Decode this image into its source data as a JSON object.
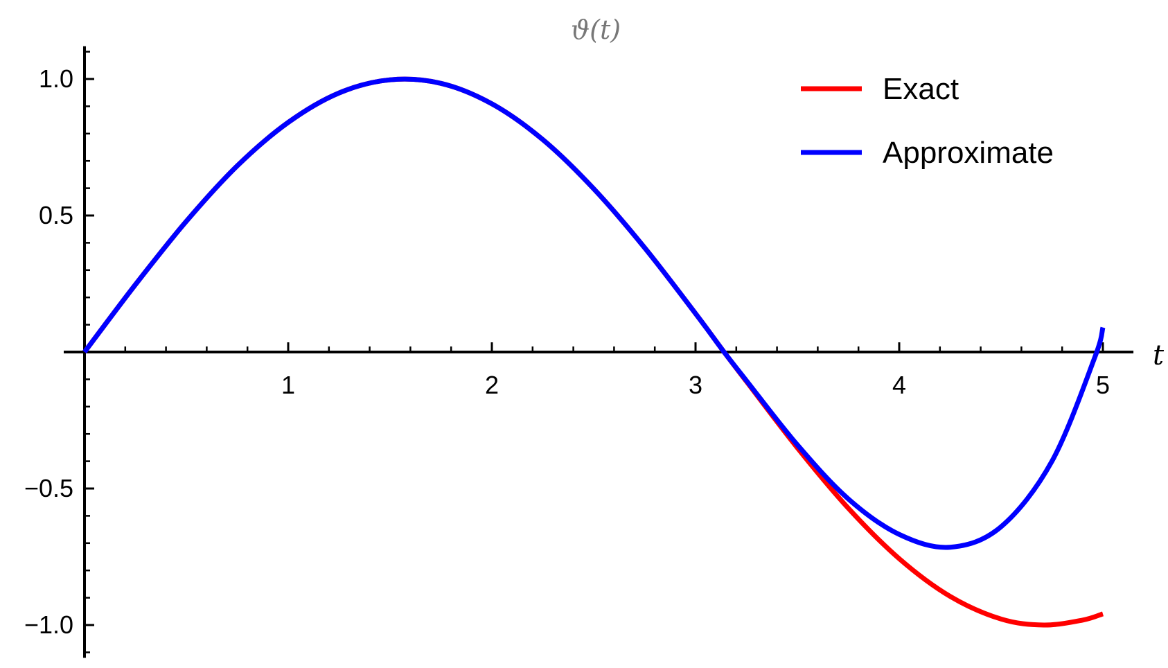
{
  "chart_data": {
    "type": "line",
    "title": "ϑ(t)",
    "xlabel": "t",
    "ylabel": "",
    "xlim": [
      0,
      5.15
    ],
    "ylim": [
      -1.12,
      1.12
    ],
    "x_ticks": [
      1,
      2,
      3,
      4,
      5
    ],
    "x_tick_labels": [
      "1",
      "2",
      "3",
      "4",
      "5"
    ],
    "y_ticks": [
      -1.0,
      -0.5,
      0.5,
      1.0
    ],
    "y_tick_labels": [
      "−1.0",
      "−0.5",
      "0.5",
      "1.0"
    ],
    "legend_position": "top-right",
    "series": [
      {
        "name": "Exact",
        "color": "#ff0000",
        "x": [
          0,
          0.25,
          0.5,
          0.75,
          1.0,
          1.25,
          1.5,
          1.75,
          2.0,
          2.25,
          2.5,
          2.75,
          3.0,
          3.14,
          3.25,
          3.5,
          3.75,
          4.0,
          4.25,
          4.5,
          4.71,
          4.9,
          5.0
        ],
        "y": [
          0,
          0.247,
          0.479,
          0.682,
          0.841,
          0.949,
          0.997,
          0.984,
          0.909,
          0.778,
          0.598,
          0.382,
          0.141,
          0.0,
          -0.108,
          -0.351,
          -0.572,
          -0.757,
          -0.895,
          -0.978,
          -1.0,
          -0.982,
          -0.959
        ]
      },
      {
        "name": "Approximate",
        "color": "#0000ff",
        "x": [
          0,
          0.25,
          0.5,
          0.75,
          1.0,
          1.25,
          1.5,
          1.75,
          2.0,
          2.25,
          2.5,
          2.75,
          3.0,
          3.14,
          3.25,
          3.5,
          3.75,
          4.0,
          4.25,
          4.5,
          4.75,
          4.96,
          5.0
        ],
        "y": [
          0,
          0.247,
          0.479,
          0.682,
          0.841,
          0.949,
          0.997,
          0.984,
          0.909,
          0.778,
          0.598,
          0.382,
          0.141,
          0.0,
          -0.105,
          -0.34,
          -0.538,
          -0.668,
          -0.715,
          -0.64,
          -0.4,
          -0.02,
          0.09
        ]
      }
    ]
  }
}
